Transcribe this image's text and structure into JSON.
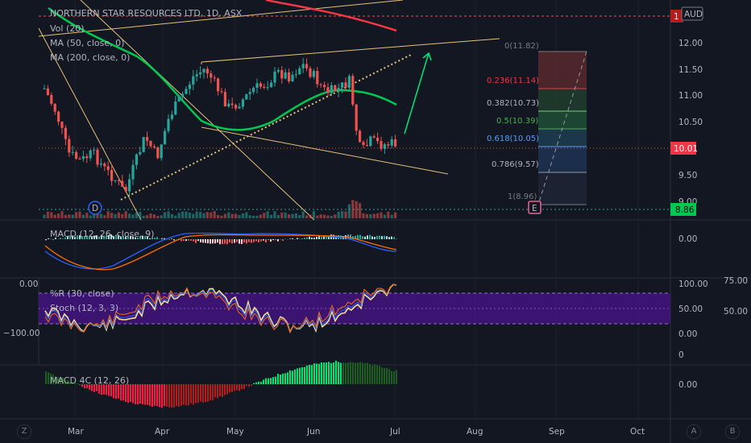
{
  "header": {
    "symbol_title": "NORTHERN STAR RESOURCES LTD, 1D, ASX",
    "currency_badge": "AUD"
  },
  "main_pane": {
    "legend": [
      "Vol (20)",
      "MA (50, close, 0)",
      "MA (200, close, 0)"
    ],
    "price_axis": [
      "12.00",
      "11.50",
      "11.00",
      "10.50",
      "10.00",
      "9.50",
      "9.00"
    ],
    "top_cut_label": "1",
    "last_price": "10.01",
    "green_line_value": "8.86",
    "dividend_marker": "D",
    "earnings_marker": "E",
    "fib_levels": [
      {
        "label": "0(11.82)",
        "color": "#787b86"
      },
      {
        "label": "0.236(11.14)",
        "color": "#f23645"
      },
      {
        "label": "0.382(10.73)",
        "color": "#b2b5be"
      },
      {
        "label": "0.5(10.39)",
        "color": "#4caf50"
      },
      {
        "label": "0.618(10.05)",
        "color": "#5b9cf6"
      },
      {
        "label": "0.786(9.57)",
        "color": "#b2b5be"
      },
      {
        "label": "1(8.96)",
        "color": "#787b86"
      }
    ]
  },
  "macd_pane": {
    "label": "MACD (12, 26, close, 9)",
    "axis": [
      "0.00"
    ]
  },
  "osc_pane": {
    "labels": [
      "%R (30, close)",
      "Stoch (12, 3, 3)"
    ],
    "left_axis": [
      "0.00",
      "−100.00"
    ],
    "right_axis": [
      "100.00",
      "50.00",
      "0.00",
      "0"
    ],
    "far_right_axis": [
      "75.00",
      "50.00"
    ]
  },
  "macd4c_pane": {
    "label": "MACD 4C (12, 26)",
    "axis": [
      "0.00"
    ]
  },
  "time_axis": [
    "Mar",
    "Apr",
    "May",
    "Jun",
    "Jul",
    "Aug",
    "Sep",
    "Oct"
  ],
  "corner_buttons": {
    "left": "Z",
    "right_a": "A",
    "right_b": "B"
  },
  "colors": {
    "background": "#131722",
    "bull": "#26a69a",
    "bear": "#ef5350",
    "ma50": "#00c853",
    "ma200": "#f23645",
    "trendline": "#e5c07b",
    "osc_band": "#4a148c"
  }
}
